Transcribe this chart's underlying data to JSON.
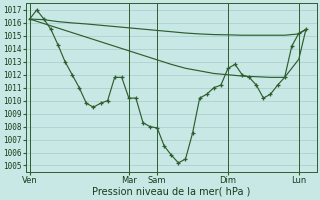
{
  "background_color": "#c8e8e5",
  "grid_color": "#a8ccca",
  "line_color": "#2d5e2d",
  "xlabel": "Pression niveau de la mer( hPa )",
  "ylim_min": 1004.5,
  "ylim_max": 1017.5,
  "ytick_values": [
    1005,
    1006,
    1007,
    1008,
    1009,
    1010,
    1011,
    1012,
    1013,
    1014,
    1015,
    1016,
    1017
  ],
  "day_labels": [
    "Ven",
    "Mar",
    "Sam",
    "Dim",
    "Lun"
  ],
  "day_positions": [
    0,
    14,
    18,
    28,
    38
  ],
  "xlim_min": -0.5,
  "xlim_max": 40.5,
  "s1x": [
    0,
    1,
    2,
    3,
    4,
    5,
    6,
    7,
    8,
    9,
    10,
    11,
    12,
    13,
    14,
    15,
    16,
    17,
    18,
    19,
    20,
    21,
    22,
    23,
    24,
    25,
    26,
    27,
    28,
    29,
    30,
    31,
    32,
    33,
    34,
    35,
    36,
    37,
    38,
    39
  ],
  "s1y": [
    1016.3,
    1017.0,
    1016.3,
    1015.5,
    1014.3,
    1013.0,
    1012.0,
    1011.0,
    1009.8,
    1009.5,
    1009.8,
    1010.0,
    1011.8,
    1011.8,
    1010.2,
    1010.2,
    1008.3,
    1008.0,
    1007.9,
    1006.5,
    1005.8,
    1005.2,
    1005.5,
    1007.5,
    1010.2,
    1010.5,
    1011.0,
    1011.2,
    1012.5,
    1012.8,
    1012.0,
    1011.8,
    1011.2,
    1010.2,
    1010.5,
    1011.2,
    1011.8,
    1014.2,
    1015.2,
    1015.5
  ],
  "s2x": [
    0,
    2,
    4,
    6,
    8,
    10,
    12,
    14,
    16,
    18,
    20,
    22,
    24,
    26,
    28,
    30,
    32,
    34,
    36,
    38,
    39
  ],
  "s2y": [
    1016.3,
    1016.25,
    1016.1,
    1016.0,
    1015.92,
    1015.82,
    1015.72,
    1015.62,
    1015.52,
    1015.42,
    1015.32,
    1015.22,
    1015.15,
    1015.1,
    1015.08,
    1015.05,
    1015.05,
    1015.05,
    1015.05,
    1015.15,
    1015.5
  ],
  "s3x": [
    0,
    2,
    4,
    6,
    8,
    10,
    12,
    14,
    16,
    18,
    20,
    22,
    24,
    26,
    28,
    30,
    32,
    34,
    36,
    38,
    39
  ],
  "s3y": [
    1016.3,
    1015.95,
    1015.6,
    1015.25,
    1014.9,
    1014.55,
    1014.2,
    1013.85,
    1013.5,
    1013.15,
    1012.8,
    1012.5,
    1012.3,
    1012.1,
    1012.0,
    1011.9,
    1011.85,
    1011.8,
    1011.8,
    1013.2,
    1015.5
  ]
}
